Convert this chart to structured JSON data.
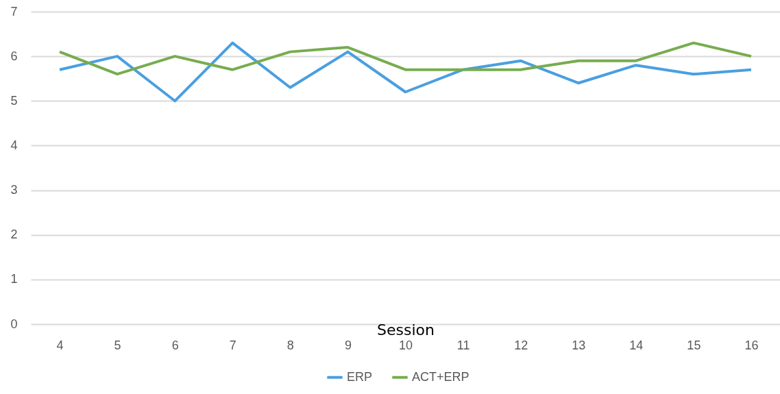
{
  "chart_data": {
    "type": "line",
    "xlabel": "Session",
    "categories": [
      "4",
      "5",
      "6",
      "7",
      "8",
      "9",
      "10",
      "11",
      "12",
      "13",
      "14",
      "15",
      "16"
    ],
    "series": [
      {
        "name": "ERP",
        "color": "#4a9fe0",
        "values": [
          5.7,
          6.0,
          5.0,
          6.3,
          5.3,
          6.1,
          5.2,
          5.7,
          5.9,
          5.4,
          5.8,
          5.6,
          5.7
        ]
      },
      {
        "name": "ACT+ERP",
        "color": "#77ac4f",
        "values": [
          6.1,
          5.6,
          6.0,
          5.7,
          6.1,
          6.2,
          5.7,
          5.7,
          5.7,
          5.9,
          5.9,
          6.3,
          6.0
        ]
      }
    ],
    "ylim": [
      0,
      7
    ],
    "yticks": [
      0,
      1,
      2,
      3,
      4,
      5,
      6,
      7
    ],
    "grid": "y",
    "legend": "bottom"
  }
}
